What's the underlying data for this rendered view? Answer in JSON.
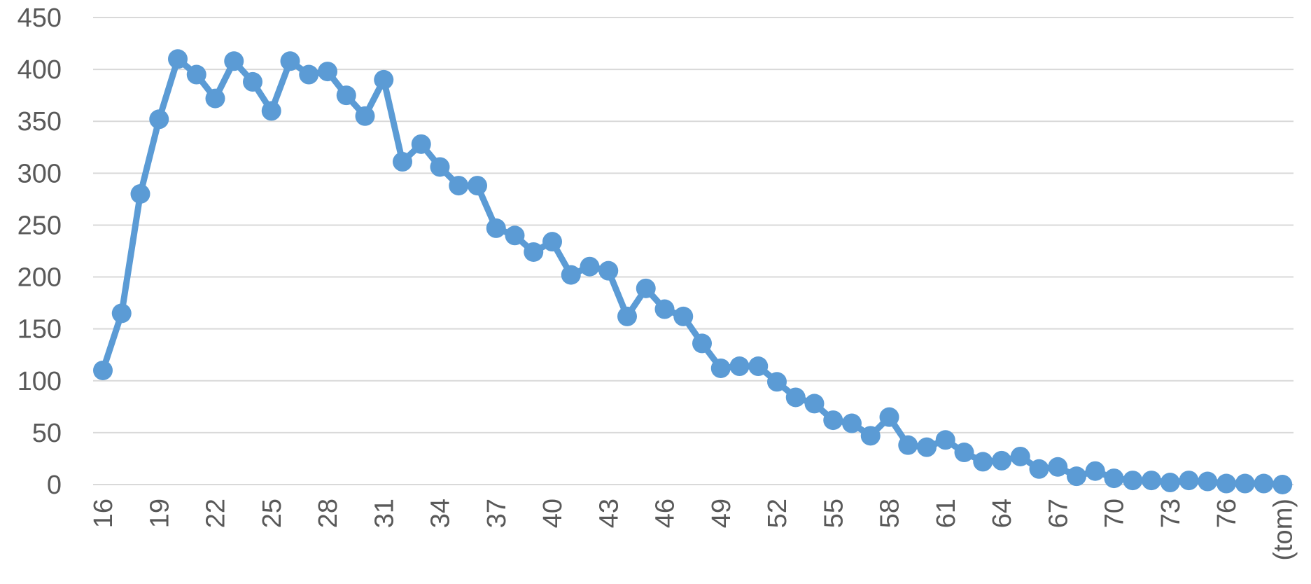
{
  "chart_data": {
    "type": "line",
    "title": "",
    "xlabel": "",
    "ylabel": "",
    "ylim": [
      0,
      450
    ],
    "yticks": [
      "0",
      "50",
      "100",
      "150",
      "200",
      "250",
      "300",
      "350",
      "400",
      "450"
    ],
    "x_tick_labels": [
      "16",
      "19",
      "22",
      "25",
      "28",
      "31",
      "34",
      "37",
      "40",
      "43",
      "46",
      "49",
      "52",
      "55",
      "58",
      "61",
      "64",
      "67",
      "70",
      "73",
      "76",
      "(tom)"
    ],
    "grid": true,
    "legend": "none",
    "colors": {
      "series": "#5b9bd5",
      "grid": "#d9d9d9",
      "text": "#595959"
    },
    "categories": [
      "16",
      "17",
      "18",
      "19",
      "20",
      "21",
      "22",
      "23",
      "24",
      "25",
      "26",
      "27",
      "28",
      "29",
      "30",
      "31",
      "32",
      "33",
      "34",
      "35",
      "36",
      "37",
      "38",
      "39",
      "40",
      "41",
      "42",
      "43",
      "44",
      "45",
      "46",
      "47",
      "48",
      "49",
      "50",
      "51",
      "52",
      "53",
      "54",
      "55",
      "56",
      "57",
      "58",
      "59",
      "60",
      "61",
      "62",
      "63",
      "64",
      "65",
      "66",
      "67",
      "68",
      "69",
      "70",
      "71",
      "72",
      "73",
      "74",
      "75",
      "76",
      "77",
      "78",
      "(tom)"
    ],
    "series": [
      {
        "values": [
          110,
          165,
          280,
          352,
          410,
          395,
          372,
          408,
          388,
          360,
          408,
          395,
          398,
          375,
          355,
          390,
          311,
          328,
          306,
          288,
          288,
          247,
          240,
          224,
          234,
          202,
          210,
          206,
          162,
          189,
          169,
          162,
          136,
          112,
          114,
          114,
          99,
          84,
          78,
          62,
          59,
          47,
          65,
          38,
          36,
          43,
          31,
          22,
          23,
          27,
          15,
          17,
          8,
          13,
          6,
          4,
          4,
          2,
          4,
          3,
          1,
          1,
          1,
          0
        ]
      }
    ]
  }
}
